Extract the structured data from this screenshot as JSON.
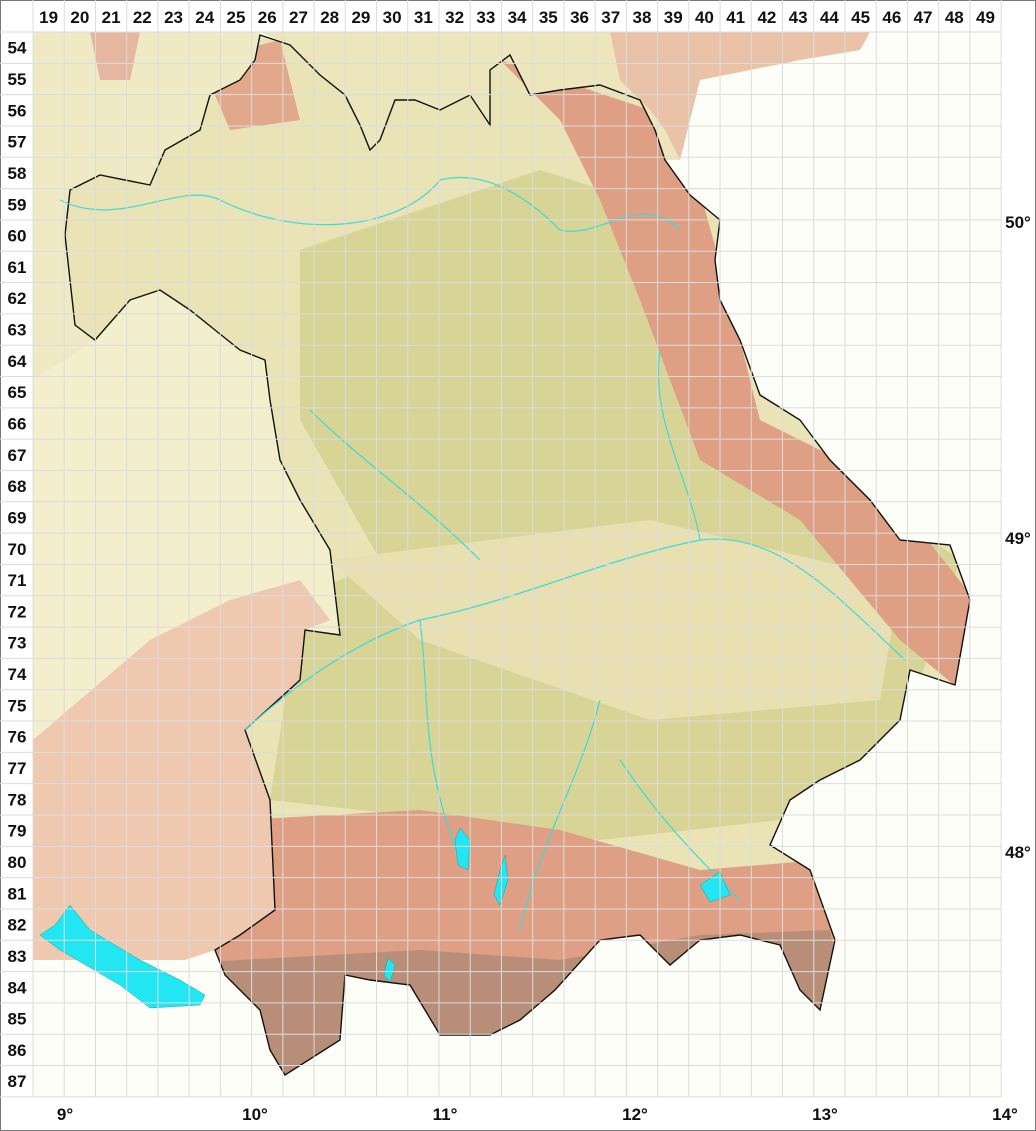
{
  "map": {
    "grid_columns": [
      "19",
      "20",
      "21",
      "22",
      "23",
      "24",
      "25",
      "26",
      "27",
      "28",
      "29",
      "30",
      "31",
      "32",
      "33",
      "34",
      "35",
      "36",
      "37",
      "38",
      "39",
      "40",
      "41",
      "42",
      "43",
      "44",
      "45",
      "46",
      "47",
      "48",
      "49"
    ],
    "grid_rows": [
      "54",
      "55",
      "56",
      "57",
      "58",
      "59",
      "60",
      "61",
      "62",
      "63",
      "64",
      "65",
      "66",
      "67",
      "68",
      "69",
      "70",
      "71",
      "72",
      "73",
      "74",
      "75",
      "76",
      "77",
      "78",
      "79",
      "80",
      "81",
      "82",
      "83",
      "84",
      "85",
      "86",
      "87"
    ],
    "latitude_labels": [
      "50°",
      "49°",
      "48°"
    ],
    "longitude_labels": [
      "9°",
      "10°",
      "11°",
      "12°",
      "13°",
      "14°"
    ],
    "colors": {
      "lowland": "#eae3b6",
      "hills": "#d8d495",
      "upland": "#de9f84",
      "alpine": "#b98e78",
      "outside_west": "#f3efcc",
      "water": "#22e6f2",
      "border": "#111111",
      "grid": "#dcdcdc"
    }
  }
}
